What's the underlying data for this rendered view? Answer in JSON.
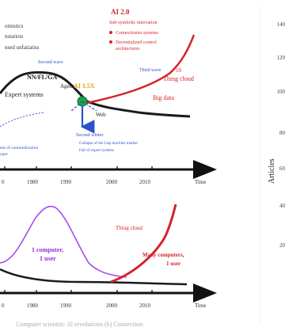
{
  "top": {
    "partial_labels": [
      {
        "text": "omistics",
        "x": 6,
        "y": 35
      },
      {
        "text": "nstatiots",
        "x": 6,
        "y": 48
      },
      {
        "text": "nsed unfatiatiss",
        "x": 6,
        "y": 62
      }
    ],
    "ai20": {
      "title": "AI 2.0",
      "subtitle": "Sub-symbolic innovation",
      "bullets": [
        "Connectionist systems",
        "Decentralized control",
        "architectures"
      ]
    },
    "labels": {
      "second_wave": "Second wave",
      "nn": "NN/FL/GA",
      "agent": "Agent",
      "ai15": "AI 1.5X",
      "expert": "Expert systems",
      "third": "Third wave",
      "thing": "Thing cloud",
      "num_huge": "10",
      "big_data": "Big data",
      "web": "Web",
      "second_winter": "Second winter",
      "winter_1": "Collapse of the Lisp machine market",
      "winter_2": "Fall of expert systems",
      "decomm_1": "ent of commodization",
      "decomm_2": "yper",
      "years": [
        "0",
        "1980",
        "1990",
        "2000",
        "2010"
      ],
      "time": "Time"
    }
  },
  "bottom": {
    "labels": {
      "one_a": "1 computer,",
      "one_b": "1 user",
      "thing": "Thing cloud",
      "many_a": "Many computers,",
      "many_b": "1 user",
      "years": [
        "0",
        "1980",
        "1990",
        "2000",
        "2010"
      ],
      "time": "Time"
    },
    "caption": "Computer scientist: Al revolutions (b) Connection"
  },
  "right_chart": {
    "ylabel": "Articles",
    "ticks": [
      "140",
      "120",
      "100",
      "80",
      "60",
      "40",
      "20"
    ]
  }
}
